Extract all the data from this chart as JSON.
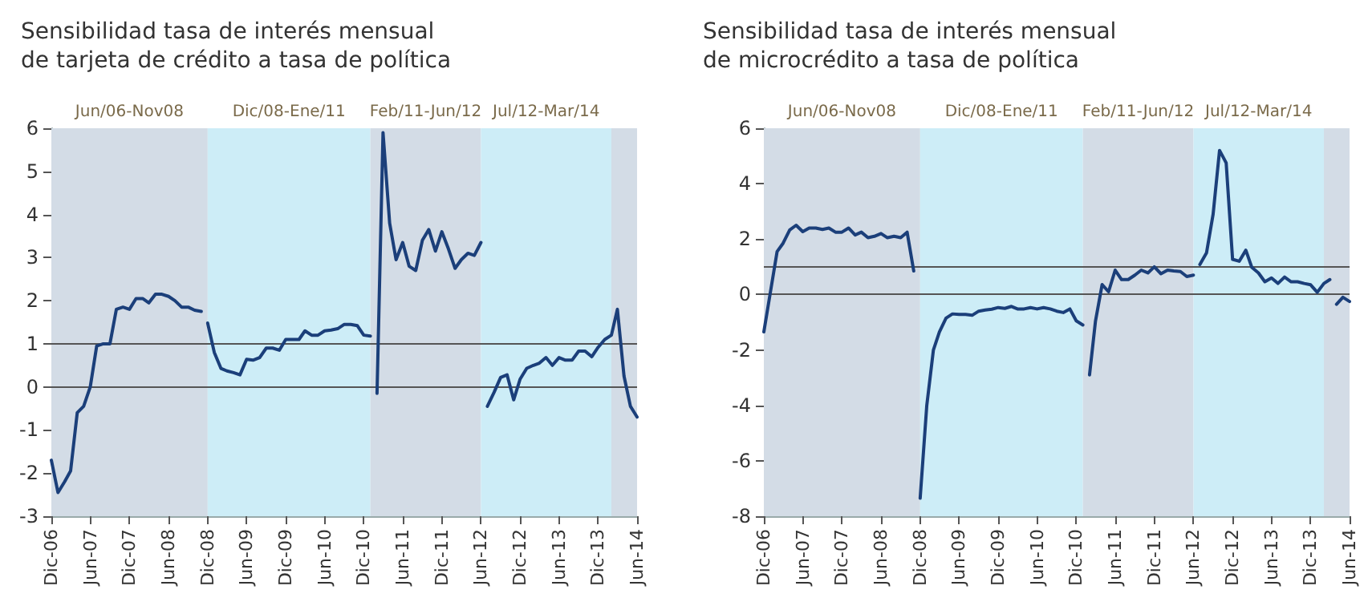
{
  "chart_data": [
    {
      "type": "line",
      "title": "Sensibilidad tasa de interés mensual\nde tarjeta de crédito a tasa de política",
      "marker": "none",
      "grid": false,
      "xlim": [
        "2006-12",
        "2014-06"
      ],
      "xticks": [
        {
          "value": "2006-12",
          "label": "Dic-06"
        },
        {
          "value": "2007-06",
          "label": "Jun-07"
        },
        {
          "value": "2007-12",
          "label": "Dic-07"
        },
        {
          "value": "2008-06",
          "label": "Jun-08"
        },
        {
          "value": "2008-12",
          "label": "Dic-08"
        },
        {
          "value": "2009-06",
          "label": "Jun-09"
        },
        {
          "value": "2009-12",
          "label": "Dic-09"
        },
        {
          "value": "2010-06",
          "label": "Jun-10"
        },
        {
          "value": "2010-12",
          "label": "Dic-10"
        },
        {
          "value": "2011-06",
          "label": "Jun-11"
        },
        {
          "value": "2011-12",
          "label": "Dic-11"
        },
        {
          "value": "2012-06",
          "label": "Jun-12"
        },
        {
          "value": "2012-12",
          "label": "Dic-12"
        },
        {
          "value": "2013-06",
          "label": "Jun-13"
        },
        {
          "value": "2013-12",
          "label": "Dic-13"
        },
        {
          "value": "2014-06",
          "label": "Jun-14"
        }
      ],
      "ylim": [
        -3,
        6
      ],
      "yticks": [
        -3,
        -2,
        -1,
        0,
        1,
        2,
        3,
        4,
        5,
        6
      ],
      "ref_lines": [
        {
          "axis": "y",
          "value": 1,
          "color": "#555555"
        },
        {
          "axis": "y",
          "value": 0,
          "color": "#555555"
        }
      ],
      "bands": [
        {
          "axis": "x",
          "from": "2006-12",
          "to": "2008-12",
          "label": "Jun/06-Nov08",
          "color": "#d3dce6"
        },
        {
          "axis": "x",
          "from": "2008-12",
          "to": "2011-01",
          "label": "Dic/08-Ene/11",
          "color": "#cdedf7"
        },
        {
          "axis": "x",
          "from": "2011-01",
          "to": "2012-06",
          "label": "Feb/11-Jun/12",
          "color": "#d3dce6"
        },
        {
          "axis": "x",
          "from": "2012-06",
          "to": "2014-02",
          "label": "Jul/12-Mar/14",
          "color": "#cdedf7"
        },
        {
          "axis": "x",
          "from": "2014-02",
          "to": "2014-06",
          "color": "#d3dce6"
        }
      ],
      "series": [
        {
          "color": "#1b3f7a",
          "x": [
            "2006-12",
            "2007-01",
            "2007-02",
            "2007-03",
            "2007-04",
            "2007-05",
            "2007-06",
            "2007-07",
            "2007-08",
            "2007-09",
            "2007-10",
            "2007-11",
            "2007-12",
            "2008-01",
            "2008-02",
            "2008-03",
            "2008-04",
            "2008-05",
            "2008-06",
            "2008-07",
            "2008-08",
            "2008-09",
            "2008-10",
            "2008-11"
          ],
          "values": [
            -1.7,
            -2.45,
            -2.2,
            -1.95,
            -0.6,
            -0.45,
            0.0,
            0.95,
            1.0,
            1.0,
            1.8,
            1.85,
            1.8,
            2.05,
            2.05,
            1.95,
            2.15,
            2.15,
            2.1,
            2.0,
            1.85,
            1.85,
            1.78,
            1.75
          ]
        },
        {
          "color": "#1b3f7a",
          "x": [
            "2008-12",
            "2009-01",
            "2009-02",
            "2009-03",
            "2009-04",
            "2009-05",
            "2009-06",
            "2009-07",
            "2009-08",
            "2009-09",
            "2009-10",
            "2009-11",
            "2009-12",
            "2010-01",
            "2010-02",
            "2010-03",
            "2010-04",
            "2010-05",
            "2010-06",
            "2010-07",
            "2010-08",
            "2010-09",
            "2010-10",
            "2010-11",
            "2010-12",
            "2011-01"
          ],
          "values": [
            1.48,
            0.8,
            0.43,
            0.37,
            0.33,
            0.28,
            0.64,
            0.62,
            0.68,
            0.9,
            0.9,
            0.85,
            1.1,
            1.1,
            1.1,
            1.3,
            1.2,
            1.2,
            1.3,
            1.32,
            1.35,
            1.45,
            1.45,
            1.42,
            1.2,
            1.18
          ]
        },
        {
          "color": "#1b3f7a",
          "x": [
            "2011-02",
            "2011-03",
            "2011-04",
            "2011-05",
            "2011-06",
            "2011-07",
            "2011-08",
            "2011-09",
            "2011-10",
            "2011-11",
            "2011-12",
            "2012-01",
            "2012-02",
            "2012-03",
            "2012-04",
            "2012-05",
            "2012-06"
          ],
          "values": [
            -0.15,
            5.9,
            3.8,
            2.95,
            3.35,
            2.8,
            2.7,
            3.4,
            3.65,
            3.15,
            3.6,
            3.2,
            2.75,
            2.95,
            3.1,
            3.05,
            3.35
          ]
        },
        {
          "color": "#1b3f7a",
          "x": [
            "2012-07",
            "2012-08",
            "2012-09",
            "2012-10",
            "2012-11",
            "2012-12",
            "2013-01",
            "2013-02",
            "2013-03",
            "2013-04",
            "2013-05",
            "2013-06",
            "2013-07",
            "2013-08",
            "2013-09",
            "2013-10",
            "2013-11",
            "2013-12",
            "2014-01",
            "2014-02",
            "2014-03",
            "2014-04",
            "2014-05",
            "2014-06"
          ],
          "values": [
            -0.45,
            -0.13,
            0.22,
            0.28,
            -0.3,
            0.18,
            0.43,
            0.5,
            0.55,
            0.68,
            0.5,
            0.68,
            0.62,
            0.62,
            0.83,
            0.83,
            0.7,
            0.92,
            1.1,
            1.2,
            1.8,
            0.25,
            -0.45,
            -0.7
          ]
        }
      ]
    },
    {
      "type": "line",
      "title": "Sensibilidad tasa de interés mensual\nde microcrédito a tasa de política",
      "marker": "none",
      "grid": false,
      "xlim": [
        "2006-12",
        "2014-06"
      ],
      "xticks": [
        {
          "value": "2006-12",
          "label": "Dic-06"
        },
        {
          "value": "2007-06",
          "label": "Jun-07"
        },
        {
          "value": "2007-12",
          "label": "Dic-07"
        },
        {
          "value": "2008-06",
          "label": "Jun-08"
        },
        {
          "value": "2008-12",
          "label": "Dic-08"
        },
        {
          "value": "2009-06",
          "label": "Jun-09"
        },
        {
          "value": "2009-12",
          "label": "Dic-09"
        },
        {
          "value": "2010-06",
          "label": "Jun-10"
        },
        {
          "value": "2010-12",
          "label": "Dic-10"
        },
        {
          "value": "2011-06",
          "label": "Jun-11"
        },
        {
          "value": "2011-12",
          "label": "Dic-11"
        },
        {
          "value": "2012-06",
          "label": "Jun-12"
        },
        {
          "value": "2012-12",
          "label": "Dic-12"
        },
        {
          "value": "2013-06",
          "label": "Jun-13"
        },
        {
          "value": "2013-12",
          "label": "Dic-13"
        },
        {
          "value": "2014-06",
          "label": "Jun-14"
        }
      ],
      "ylim": [
        -8,
        6
      ],
      "yticks": [
        -8,
        -6,
        -4,
        -2,
        0,
        2,
        4,
        6
      ],
      "ref_lines": [
        {
          "axis": "y",
          "value": 1,
          "color": "#555555"
        },
        {
          "axis": "y",
          "value": 0,
          "color": "#555555"
        }
      ],
      "bands": [
        {
          "axis": "x",
          "from": "2006-12",
          "to": "2008-12",
          "label": "Jun/06-Nov08",
          "color": "#d3dce6"
        },
        {
          "axis": "x",
          "from": "2008-12",
          "to": "2011-01",
          "label": "Dic/08-Ene/11",
          "color": "#cdedf7"
        },
        {
          "axis": "x",
          "from": "2011-01",
          "to": "2012-06",
          "label": "Feb/11-Jun/12",
          "color": "#d3dce6"
        },
        {
          "axis": "x",
          "from": "2012-06",
          "to": "2014-02",
          "label": "Jul/12-Mar/14",
          "color": "#cdedf7"
        },
        {
          "axis": "x",
          "from": "2014-02",
          "to": "2014-06",
          "color": "#d3dce6"
        }
      ],
      "series": [
        {
          "color": "#1b3f7a",
          "x": [
            "2006-12",
            "2007-01",
            "2007-02",
            "2007-03",
            "2007-04",
            "2007-05",
            "2007-06",
            "2007-07",
            "2007-08",
            "2007-09",
            "2007-10",
            "2007-11",
            "2007-12",
            "2008-01",
            "2008-02",
            "2008-03",
            "2008-04",
            "2008-05",
            "2008-06",
            "2008-07",
            "2008-08",
            "2008-09",
            "2008-10",
            "2008-11"
          ],
          "values": [
            -1.35,
            0.1,
            1.55,
            1.85,
            2.33,
            2.5,
            2.27,
            2.4,
            2.4,
            2.35,
            2.4,
            2.25,
            2.25,
            2.4,
            2.15,
            2.25,
            2.05,
            2.1,
            2.2,
            2.05,
            2.1,
            2.05,
            2.25,
            0.85
          ]
        },
        {
          "color": "#1b3f7a",
          "x": [
            "2008-12",
            "2009-01",
            "2009-02",
            "2009-03",
            "2009-04",
            "2009-05",
            "2009-06",
            "2009-07",
            "2009-08",
            "2009-09",
            "2009-10",
            "2009-11",
            "2009-12",
            "2010-01",
            "2010-02",
            "2010-03",
            "2010-04",
            "2010-05",
            "2010-06",
            "2010-07",
            "2010-08",
            "2010-09",
            "2010-10",
            "2010-11",
            "2010-12",
            "2011-01"
          ],
          "values": [
            -7.35,
            -4.0,
            -2.0,
            -1.35,
            -0.85,
            -0.7,
            -0.72,
            -0.72,
            -0.75,
            -0.6,
            -0.56,
            -0.53,
            -0.47,
            -0.5,
            -0.43,
            -0.52,
            -0.52,
            -0.47,
            -0.52,
            -0.47,
            -0.52,
            -0.6,
            -0.65,
            -0.52,
            -0.95,
            -1.1
          ]
        },
        {
          "color": "#1b3f7a",
          "x": [
            "2011-02",
            "2011-03",
            "2011-04",
            "2011-05",
            "2011-06",
            "2011-07",
            "2011-08",
            "2011-09",
            "2011-10",
            "2011-11",
            "2011-12",
            "2012-01",
            "2012-02",
            "2012-03",
            "2012-04",
            "2012-05",
            "2012-06"
          ],
          "values": [
            -2.9,
            -0.95,
            0.36,
            0.1,
            0.88,
            0.54,
            0.54,
            0.7,
            0.88,
            0.78,
            1.0,
            0.75,
            0.88,
            0.85,
            0.83,
            0.65,
            0.7
          ]
        },
        {
          "color": "#1b3f7a",
          "x": [
            "2012-07",
            "2012-08",
            "2012-09",
            "2012-10",
            "2012-11",
            "2012-12",
            "2013-01",
            "2013-02",
            "2013-03",
            "2013-04",
            "2013-05",
            "2013-06",
            "2013-07",
            "2013-08",
            "2013-09",
            "2013-10",
            "2013-11",
            "2013-12",
            "2014-01",
            "2014-02",
            "2014-03"
          ],
          "values": [
            1.08,
            1.5,
            2.9,
            5.2,
            4.75,
            1.27,
            1.2,
            1.6,
            0.98,
            0.78,
            0.46,
            0.6,
            0.4,
            0.63,
            0.46,
            0.46,
            0.4,
            0.35,
            0.08,
            0.4,
            0.54
          ]
        },
        {
          "color": "#1b3f7a",
          "x": [
            "2014-04",
            "2014-05",
            "2014-06"
          ],
          "values": [
            -0.35,
            -0.1,
            -0.25
          ]
        }
      ]
    }
  ]
}
